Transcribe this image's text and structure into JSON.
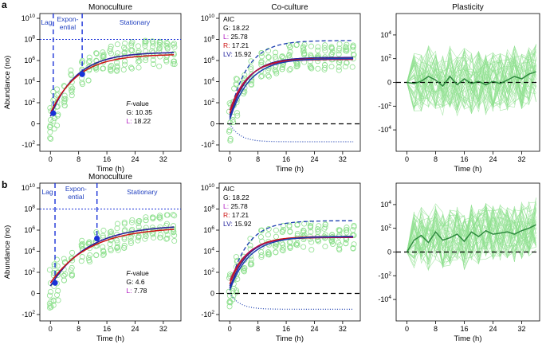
{
  "colors": {
    "dots": "#8fe08f",
    "plasticity_lines": "#8fe08f",
    "plasticity_mean": "#2e8b3e",
    "gompertz": "#2a1f9a",
    "logistic": "#cc1111",
    "richards": "#b01050",
    "lv": "#1c3fb0",
    "phase_blue": "#1a32d8",
    "phase_text": "#1f3fbf",
    "label_L": "#b018c0",
    "label_R": "#cc1111",
    "label_LV": "#1c1c9a"
  },
  "chart_data": [
    {
      "type": "scatter",
      "title": "Monoculture",
      "panel_letter": "a",
      "xlabel": "Time (h)",
      "ylabel": "Abundance (no)",
      "xticks": [
        "0",
        "8",
        "16",
        "24",
        "32"
      ],
      "xlim": [
        -3,
        37
      ],
      "yticks": [
        "10^10",
        "10^8",
        "10^6",
        "10^4",
        "10^2",
        "0",
        "-10^2"
      ],
      "y_log_range": [
        -2,
        10
      ],
      "time_points": [
        0,
        1,
        2,
        4,
        6,
        9,
        11,
        13,
        15,
        17,
        19,
        21,
        23,
        25,
        27,
        29,
        31,
        33,
        35
      ],
      "phases": {
        "lag_end": 0.8,
        "exp_end": 9.0,
        "lag": "Lag",
        "exp_l1": "Expon-",
        "exp_l2": "ential",
        "stationary": "Stationary"
      },
      "inflection_points": [
        {
          "x": 0.8,
          "y_log": 1.0
        },
        {
          "x": 9.0,
          "y_log": 4.7
        }
      ],
      "curves": [
        {
          "name": "G",
          "log_start": 0.7,
          "log_end": 6.8
        },
        {
          "name": "L",
          "log_start": 1.0,
          "log_end": 6.6
        }
      ],
      "stat_title": "F",
      "stat_title_rest": "-value",
      "stats": [
        {
          "label": "G:",
          "value": "10.35"
        },
        {
          "label": "L:",
          "value": "18.22"
        }
      ]
    },
    {
      "type": "scatter",
      "title": "Co-culture",
      "xlabel": "Time (h)",
      "xticks": [
        "0",
        "8",
        "16",
        "24",
        "32"
      ],
      "xlim": [
        -3,
        37
      ],
      "yticks": [
        "10^10",
        "10^8",
        "10^6",
        "10^4",
        "10^2",
        "0",
        "-10^2"
      ],
      "y_log_range": [
        -2,
        10
      ],
      "stat_title": "AIC",
      "stats": [
        {
          "label": "G:",
          "value": "18.22"
        },
        {
          "label": "L:",
          "value": "25.78"
        },
        {
          "label": "R:",
          "value": "17.21"
        },
        {
          "label": "LV:",
          "value": "15.92"
        }
      ],
      "curves": [
        {
          "name": "G",
          "log_start": 0.6,
          "log_end": 6.3
        },
        {
          "name": "L",
          "log_start": 1.0,
          "log_end": 6.2
        },
        {
          "name": "R",
          "log_start": 1.3,
          "log_end": 6.1
        },
        {
          "name": "LV",
          "log_start": 0.4,
          "log_end": 6.2
        },
        {
          "name": "LV-upper",
          "log_start": 0.8,
          "log_end": 7.9
        },
        {
          "name": "LV-lower",
          "log_start": 0,
          "log_end": -1.7
        }
      ]
    },
    {
      "type": "line",
      "title": "Plasticity",
      "xlabel": "Time (h)",
      "xticks": [
        "0",
        "8",
        "16",
        "24",
        "32"
      ],
      "xlim": [
        -3,
        37
      ],
      "yticks": [
        "10^4",
        "10^2",
        "0",
        "-10^2",
        "-10^4"
      ],
      "y_log_range": [
        -5,
        5
      ],
      "mean_series": {
        "x": [
          0,
          2,
          4,
          6,
          8,
          10,
          12,
          14,
          16,
          18,
          20,
          22,
          24,
          26,
          28,
          30,
          32,
          34,
          36
        ],
        "y": [
          0,
          -0.1,
          0.1,
          0.5,
          0.2,
          -0.3,
          0.5,
          -0.2,
          0.3,
          -0.1,
          0.1,
          -0.2,
          0.1,
          -0.1,
          0.2,
          0.5,
          0.3,
          0.7,
          0.9
        ]
      }
    },
    {
      "type": "scatter",
      "title": "Monoculture",
      "panel_letter": "b",
      "xlabel": "Time (h)",
      "ylabel": "Abundance (no)",
      "xticks": [
        "0",
        "8",
        "16",
        "24",
        "32"
      ],
      "xlim": [
        -3,
        37
      ],
      "yticks": [
        "10^10",
        "10^8",
        "10^6",
        "10^4",
        "10^2",
        "0",
        "-10^2"
      ],
      "y_log_range": [
        -2,
        10
      ],
      "time_points": [
        0,
        1,
        2,
        4,
        6,
        9,
        11,
        13,
        15,
        17,
        19,
        21,
        23,
        25,
        27,
        29,
        31,
        33,
        35
      ],
      "phases": {
        "lag_end": 1.3,
        "exp_end": 13.2,
        "lag": "Lag",
        "exp_l1": "Expon-",
        "exp_l2": "ential",
        "stationary": "Stationary"
      },
      "inflection_points": [
        {
          "x": 1.3,
          "y_log": 1.0
        },
        {
          "x": 13.2,
          "y_log": 5.2
        }
      ],
      "curves": [
        {
          "name": "G",
          "log_start": 0.7,
          "log_end": 6.5
        },
        {
          "name": "L",
          "log_start": 1.0,
          "log_end": 6.3
        }
      ],
      "stat_title": "F",
      "stat_title_rest": "-value",
      "stats": [
        {
          "label": "G:",
          "value": "4.6"
        },
        {
          "label": "L:",
          "value": "7.78"
        }
      ]
    },
    {
      "type": "scatter",
      "title": "",
      "xlabel": "Time (h)",
      "xticks": [
        "0",
        "8",
        "16",
        "24",
        "32"
      ],
      "xlim": [
        -3,
        37
      ],
      "yticks": [
        "10^10",
        "10^8",
        "10^6",
        "10^4",
        "10^2",
        "0",
        "-10^2"
      ],
      "y_log_range": [
        -2,
        10
      ],
      "stat_title": "AIC",
      "stats": [
        {
          "label": "G:",
          "value": "18.22"
        },
        {
          "label": "L:",
          "value": "25.78"
        },
        {
          "label": "R:",
          "value": "17.21"
        },
        {
          "label": "LV:",
          "value": "15.92"
        }
      ],
      "curves": [
        {
          "name": "G",
          "log_start": 0.5,
          "log_end": 5.4
        },
        {
          "name": "L",
          "log_start": 0.9,
          "log_end": 5.4
        },
        {
          "name": "R",
          "log_start": 1.2,
          "log_end": 5.3
        },
        {
          "name": "LV",
          "log_start": 0.3,
          "log_end": 5.4
        },
        {
          "name": "LV-upper",
          "log_start": 0.7,
          "log_end": 6.9
        },
        {
          "name": "LV-lower",
          "log_start": 0,
          "log_end": -1.5
        }
      ]
    },
    {
      "type": "line",
      "title": "",
      "xlabel": "Time (h)",
      "xticks": [
        "0",
        "8",
        "16",
        "24",
        "32"
      ],
      "xlim": [
        -3,
        37
      ],
      "yticks": [
        "10^4",
        "10^2",
        "0",
        "-10^2",
        "-10^4"
      ],
      "y_log_range": [
        -5,
        5
      ],
      "mean_series": {
        "x": [
          0,
          2,
          4,
          6,
          8,
          10,
          12,
          14,
          16,
          18,
          20,
          22,
          24,
          26,
          28,
          30,
          32,
          34,
          36
        ],
        "y": [
          0,
          1.0,
          1.4,
          0.8,
          1.7,
          1.0,
          1.2,
          1.5,
          0.9,
          1.7,
          1.3,
          1.8,
          1.5,
          1.6,
          1.7,
          1.5,
          1.8,
          2.0,
          2.3
        ]
      }
    }
  ]
}
